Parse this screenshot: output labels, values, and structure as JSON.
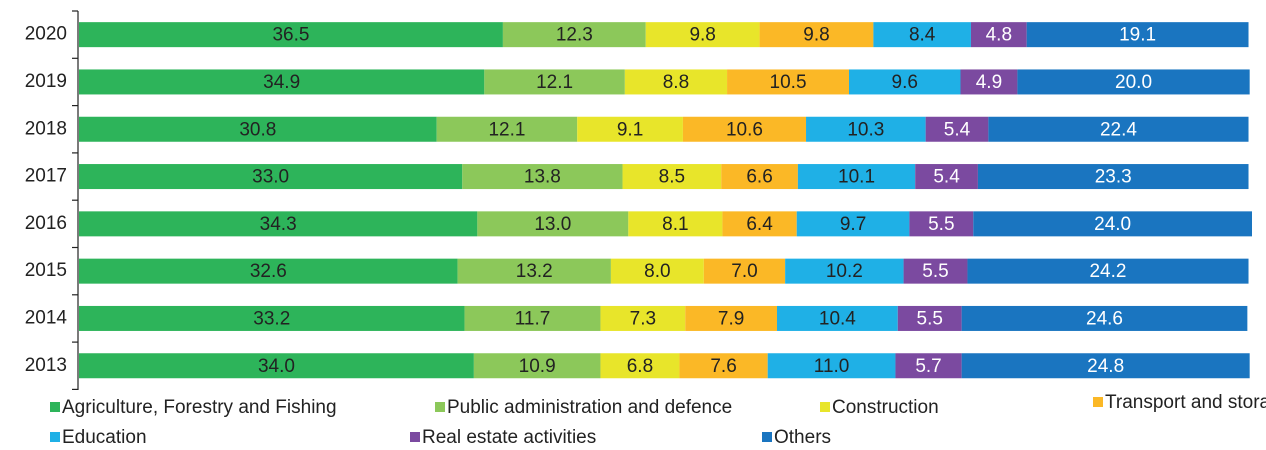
{
  "chart_data": {
    "type": "stacked-bar-horizontal",
    "categories": [
      "2020",
      "2019",
      "2018",
      "2017",
      "2016",
      "2015",
      "2014",
      "2013"
    ],
    "xlim": [
      0,
      101
    ],
    "series": [
      {
        "name": "Agriculture, Forestry and Fishing",
        "color": "#2db45a",
        "values": [
          36.5,
          34.9,
          30.8,
          33.0,
          34.3,
          32.6,
          33.2,
          34.0
        ],
        "value_labels": [
          "36.5",
          "34.9",
          "30.8",
          "33.0",
          "34.3",
          "32.6",
          "33.2",
          "34.0"
        ]
      },
      {
        "name": "Public administration and defence",
        "color": "#8cc85a",
        "values": [
          12.3,
          12.1,
          12.1,
          13.8,
          13.0,
          13.2,
          11.7,
          10.9
        ],
        "value_labels": [
          "12.3",
          "12.1",
          "12.1",
          "13.8",
          "13.0",
          "13.2",
          "11.7",
          "10.9"
        ]
      },
      {
        "name": "Construction",
        "color": "#e8e52a",
        "values": [
          9.8,
          8.8,
          9.1,
          8.5,
          8.1,
          8.0,
          7.3,
          6.8
        ],
        "value_labels": [
          "9.8",
          "8.8",
          "9.1",
          "8.5",
          "8.1",
          "8.0",
          "7.3",
          "6.8"
        ]
      },
      {
        "name": "Transport and storage",
        "color": "#fbb826",
        "values": [
          9.8,
          10.5,
          10.6,
          6.6,
          6.4,
          7.0,
          7.9,
          7.6
        ],
        "value_labels": [
          "9.8",
          "10.5",
          "10.6",
          "6.6",
          "6.4",
          "7.0",
          "7.9",
          "7.6"
        ]
      },
      {
        "name": "Education",
        "color": "#1fb0e6",
        "values": [
          8.4,
          9.6,
          10.3,
          10.1,
          9.7,
          10.2,
          10.4,
          11.0
        ],
        "value_labels": [
          "8.4",
          "9.6",
          "10.3",
          "10.1",
          "9.7",
          "10.2",
          "10.4",
          "11.0"
        ]
      },
      {
        "name": "Real estate activities",
        "color": "#7b4aa0",
        "values": [
          4.8,
          4.9,
          5.4,
          5.4,
          5.5,
          5.5,
          5.5,
          5.7
        ],
        "value_labels": [
          "4.8",
          "4.9",
          "5.4",
          "5.4",
          "5.5",
          "5.5",
          "5.5",
          "5.7"
        ]
      },
      {
        "name": "Others",
        "color": "#1a75c0",
        "values": [
          19.1,
          20.0,
          22.4,
          23.3,
          24.0,
          24.2,
          24.6,
          24.8
        ],
        "value_labels": [
          "19.1",
          "20.0",
          "22.4",
          "23.3",
          "24.0",
          "24.2",
          "24.6",
          "24.8"
        ]
      }
    ]
  }
}
